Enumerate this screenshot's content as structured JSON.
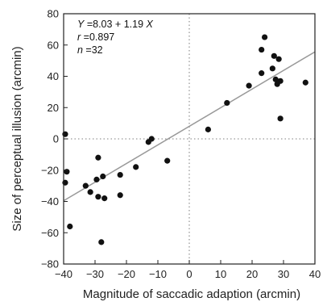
{
  "chart_data": {
    "type": "scatter",
    "title": "",
    "xlabel": "Magnitude of saccadic adaption (arcmin)",
    "ylabel": "Size of perceptual illusion (arcmin)",
    "xlim": [
      -40,
      40
    ],
    "ylim": [
      -80,
      80
    ],
    "xticks": [
      -40,
      -30,
      -20,
      -10,
      0,
      10,
      20,
      30,
      40
    ],
    "yticks": [
      -80,
      -60,
      -40,
      -20,
      0,
      20,
      40,
      60,
      80
    ],
    "grid": false,
    "reference_lines": "dotted lines at x = 0 and y = 0",
    "regression": {
      "intercept": 8.03,
      "slope": 1.19
    },
    "annotations": [
      "Y =8.03 + 1.19 X",
      "r =0.897",
      "n =32"
    ],
    "colors": {
      "points": "#111111",
      "fit_line": "#999999",
      "reference_lines": "#999999"
    },
    "points": [
      {
        "x": -39.5,
        "y": 3
      },
      {
        "x": -39.5,
        "y": -28
      },
      {
        "x": -39,
        "y": -21
      },
      {
        "x": -38,
        "y": -56
      },
      {
        "x": -33,
        "y": -30
      },
      {
        "x": -31.5,
        "y": -34
      },
      {
        "x": -29.5,
        "y": -26
      },
      {
        "x": -29,
        "y": -12
      },
      {
        "x": -29,
        "y": -37
      },
      {
        "x": -28,
        "y": -66
      },
      {
        "x": -27.5,
        "y": -24
      },
      {
        "x": -27,
        "y": -38
      },
      {
        "x": -22,
        "y": -23
      },
      {
        "x": -22,
        "y": -36
      },
      {
        "x": -17,
        "y": -18
      },
      {
        "x": -13,
        "y": -2
      },
      {
        "x": -12,
        "y": 0
      },
      {
        "x": -7,
        "y": -14
      },
      {
        "x": 6,
        "y": 6
      },
      {
        "x": 12,
        "y": 23
      },
      {
        "x": 19,
        "y": 34
      },
      {
        "x": 23,
        "y": 57
      },
      {
        "x": 23,
        "y": 42
      },
      {
        "x": 24,
        "y": 65
      },
      {
        "x": 26.5,
        "y": 45
      },
      {
        "x": 27,
        "y": 53
      },
      {
        "x": 27.5,
        "y": 38
      },
      {
        "x": 28,
        "y": 35
      },
      {
        "x": 28.5,
        "y": 51
      },
      {
        "x": 29,
        "y": 37
      },
      {
        "x": 29,
        "y": 13
      },
      {
        "x": 37,
        "y": 36
      }
    ]
  }
}
